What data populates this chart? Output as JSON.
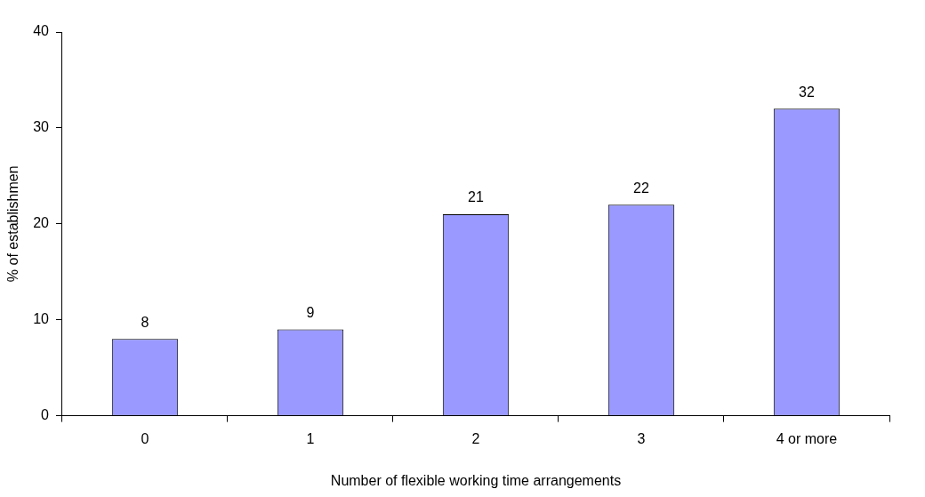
{
  "chart_data": {
    "type": "bar",
    "xlabel": "Number of flexible working time arrangements",
    "ylabel": "% of establishmen",
    "categories": [
      "0",
      "1",
      "2",
      "3",
      "4 or more"
    ],
    "values": [
      8,
      9,
      21,
      22,
      32
    ],
    "color": "#9999ff",
    "ylim": [
      0,
      40
    ],
    "yticks": [
      0,
      10,
      20,
      30,
      40
    ],
    "grid": false,
    "legend": false,
    "data_labels": true
  }
}
